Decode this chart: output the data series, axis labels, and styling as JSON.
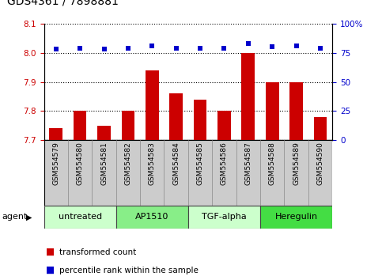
{
  "title": "GDS4361 / 7898881",
  "samples": [
    "GSM554579",
    "GSM554580",
    "GSM554581",
    "GSM554582",
    "GSM554583",
    "GSM554584",
    "GSM554585",
    "GSM554586",
    "GSM554587",
    "GSM554588",
    "GSM554589",
    "GSM554590"
  ],
  "bar_values": [
    7.74,
    7.8,
    7.75,
    7.8,
    7.94,
    7.86,
    7.84,
    7.8,
    8.0,
    7.9,
    7.9,
    7.78
  ],
  "percentile_values": [
    78,
    79,
    78,
    79,
    81,
    79,
    79,
    79,
    83,
    80,
    81,
    79
  ],
  "bar_color": "#cc0000",
  "percentile_color": "#0000cc",
  "ylim_left": [
    7.7,
    8.1
  ],
  "ylim_right": [
    0,
    100
  ],
  "yticks_left": [
    7.7,
    7.8,
    7.9,
    8.0,
    8.1
  ],
  "yticks_right": [
    0,
    25,
    50,
    75,
    100
  ],
  "ytick_labels_right": [
    "0",
    "25",
    "50",
    "75",
    "100%"
  ],
  "agent_groups": [
    {
      "label": "untreated",
      "start": 0,
      "end": 3,
      "color": "#ccffcc"
    },
    {
      "label": "AP1510",
      "start": 3,
      "end": 6,
      "color": "#88ee88"
    },
    {
      "label": "TGF-alpha",
      "start": 6,
      "end": 9,
      "color": "#ccffcc"
    },
    {
      "label": "Heregulin",
      "start": 9,
      "end": 12,
      "color": "#44dd44"
    }
  ],
  "legend_bar_label": "transformed count",
  "legend_pct_label": "percentile rank within the sample",
  "agent_label": "agent",
  "sample_label_bg": "#cccccc",
  "background_color": "#ffffff",
  "plot_bg_color": "#ffffff",
  "grid_color": "#000000",
  "title_fontsize": 10,
  "tick_fontsize": 7.5,
  "label_fontsize": 6.5,
  "agent_fontsize": 8,
  "legend_fontsize": 7.5,
  "bar_width": 0.55
}
